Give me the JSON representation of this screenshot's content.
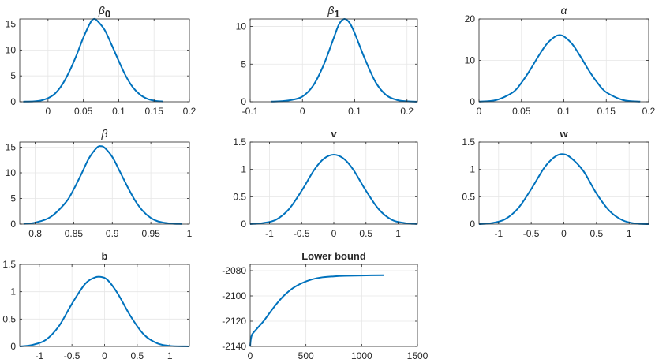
{
  "chart_data": [
    {
      "type": "line",
      "title": "β",
      "title_subscript": "0",
      "xlim": [
        -0.04,
        0.2
      ],
      "ylim": [
        0,
        16
      ],
      "xticks": [
        0,
        0.05,
        0.1,
        0.15,
        0.2
      ],
      "xtick_labels": [
        "0",
        "0.05",
        "0.1",
        "0.15",
        "0.2"
      ],
      "yticks": [
        0,
        5,
        10,
        15
      ],
      "ytick_labels": [
        "0",
        "5",
        "10",
        "15"
      ],
      "grid": true,
      "line_color": "#0072BD",
      "x": [
        -0.035,
        -0.02,
        -0.01,
        0.0,
        0.01,
        0.02,
        0.03,
        0.04,
        0.05,
        0.06,
        0.065,
        0.07,
        0.08,
        0.09,
        0.1,
        0.11,
        0.12,
        0.13,
        0.14,
        0.15,
        0.163
      ],
      "y": [
        0.02,
        0.08,
        0.25,
        0.7,
        1.6,
        3.3,
        5.8,
        8.9,
        12.4,
        15.3,
        16.0,
        15.6,
        13.9,
        11.0,
        7.9,
        5.0,
        2.8,
        1.4,
        0.6,
        0.22,
        0.05
      ]
    },
    {
      "type": "line",
      "title": "β",
      "title_subscript": "1",
      "xlim": [
        -0.1,
        0.22
      ],
      "ylim": [
        0,
        11
      ],
      "xticks": [
        -0.1,
        0,
        0.1,
        0.2
      ],
      "xtick_labels": [
        "-0.1",
        "0",
        "0.1",
        "0.2"
      ],
      "yticks": [
        0,
        5,
        10
      ],
      "ytick_labels": [
        "0",
        "5",
        "10"
      ],
      "grid": true,
      "line_color": "#0072BD",
      "x": [
        -0.06,
        -0.04,
        -0.02,
        0.0,
        0.02,
        0.04,
        0.06,
        0.07,
        0.08,
        0.09,
        0.1,
        0.12,
        0.14,
        0.16,
        0.18,
        0.2,
        0.22
      ],
      "y": [
        0.02,
        0.08,
        0.25,
        0.7,
        2.1,
        4.8,
        8.5,
        10.3,
        11.0,
        10.5,
        9.1,
        5.6,
        2.6,
        0.9,
        0.25,
        0.06,
        0.01
      ]
    },
    {
      "type": "line",
      "title": "α",
      "xlim": [
        0,
        0.2
      ],
      "ylim": [
        0,
        20
      ],
      "xticks": [
        0,
        0.05,
        0.1,
        0.15,
        0.2
      ],
      "xtick_labels": [
        "0",
        "0.05",
        "0.1",
        "0.15",
        "0.2"
      ],
      "yticks": [
        0,
        10,
        20
      ],
      "ytick_labels": [
        "0",
        "10",
        "20"
      ],
      "grid": true,
      "line_color": "#0072BD",
      "x": [
        0.0,
        0.02,
        0.04,
        0.05,
        0.06,
        0.07,
        0.08,
        0.09,
        0.095,
        0.1,
        0.11,
        0.12,
        0.13,
        0.14,
        0.15,
        0.17,
        0.19
      ],
      "y": [
        0.05,
        0.4,
        2.3,
        4.6,
        7.6,
        11.0,
        14.0,
        15.8,
        16.1,
        15.8,
        13.9,
        10.8,
        7.4,
        4.5,
        2.3,
        0.4,
        0.05
      ]
    },
    {
      "type": "line",
      "title": "β",
      "xlim": [
        0.78,
        1.0
      ],
      "ylim": [
        0,
        16
      ],
      "xticks": [
        0.8,
        0.85,
        0.9,
        0.95,
        1.0
      ],
      "xtick_labels": [
        "0.8",
        "0.85",
        "0.9",
        "0.95",
        "1"
      ],
      "yticks": [
        0,
        5,
        10,
        15
      ],
      "ytick_labels": [
        "0",
        "5",
        "10",
        "15"
      ],
      "grid": true,
      "line_color": "#0072BD",
      "x": [
        0.785,
        0.8,
        0.82,
        0.84,
        0.85,
        0.86,
        0.87,
        0.88,
        0.885,
        0.89,
        0.9,
        0.91,
        0.92,
        0.93,
        0.94,
        0.95,
        0.96,
        0.975,
        0.99
      ],
      "y": [
        0.05,
        0.3,
        1.4,
        4.3,
        6.8,
        9.8,
        12.9,
        14.9,
        15.2,
        14.9,
        13.1,
        10.2,
        7.2,
        4.5,
        2.5,
        1.2,
        0.5,
        0.12,
        0.02
      ]
    },
    {
      "type": "line",
      "title": "v",
      "xlim": [
        -1.3,
        1.3
      ],
      "ylim": [
        0,
        1.5
      ],
      "xticks": [
        -1,
        -0.5,
        0,
        0.5,
        1
      ],
      "xtick_labels": [
        "-1",
        "-0.5",
        "0",
        "0.5",
        "1"
      ],
      "yticks": [
        0,
        0.5,
        1,
        1.5
      ],
      "ytick_labels": [
        "0",
        "0.5",
        "1",
        "1.5"
      ],
      "grid": true,
      "line_color": "#0072BD",
      "x": [
        -1.3,
        -1.1,
        -0.9,
        -0.7,
        -0.5,
        -0.3,
        -0.15,
        0.0,
        0.15,
        0.3,
        0.5,
        0.7,
        0.9,
        1.1,
        1.3
      ],
      "y": [
        0.0,
        0.02,
        0.08,
        0.27,
        0.61,
        1.0,
        1.2,
        1.27,
        1.2,
        1.0,
        0.61,
        0.27,
        0.08,
        0.02,
        0.0
      ]
    },
    {
      "type": "line",
      "title": "w",
      "xlim": [
        -1.3,
        1.3
      ],
      "ylim": [
        0,
        1.5
      ],
      "xticks": [
        -1,
        -0.5,
        0,
        0.5,
        1
      ],
      "xtick_labels": [
        "-1",
        "-0.5",
        "0",
        "0.5",
        "1"
      ],
      "yticks": [
        0,
        0.5,
        1,
        1.5
      ],
      "ytick_labels": [
        "0",
        "0.5",
        "1",
        "1.5"
      ],
      "grid": true,
      "line_color": "#0072BD",
      "x": [
        -1.3,
        -1.1,
        -0.9,
        -0.7,
        -0.5,
        -0.3,
        -0.15,
        -0.03,
        0.1,
        0.3,
        0.5,
        0.7,
        0.9,
        1.1,
        1.3
      ],
      "y": [
        0.0,
        0.02,
        0.09,
        0.29,
        0.64,
        1.03,
        1.22,
        1.28,
        1.22,
        0.97,
        0.56,
        0.24,
        0.07,
        0.01,
        0.0
      ]
    },
    {
      "type": "line",
      "title": "b",
      "xlim": [
        -1.3,
        1.3
      ],
      "ylim": [
        0,
        1.5
      ],
      "xticks": [
        -1,
        -0.5,
        0,
        0.5,
        1
      ],
      "xtick_labels": [
        "-1",
        "-0.5",
        "0",
        "0.5",
        "1"
      ],
      "yticks": [
        0,
        0.5,
        1,
        1.5
      ],
      "ytick_labels": [
        "0",
        "0.5",
        "1",
        "1.5"
      ],
      "grid": true,
      "line_color": "#0072BD",
      "x": [
        -1.3,
        -1.1,
        -0.9,
        -0.7,
        -0.5,
        -0.3,
        -0.15,
        -0.05,
        0.05,
        0.2,
        0.4,
        0.6,
        0.8,
        1.0,
        1.3
      ],
      "y": [
        0.0,
        0.03,
        0.12,
        0.37,
        0.78,
        1.14,
        1.26,
        1.27,
        1.21,
        0.97,
        0.55,
        0.22,
        0.06,
        0.01,
        0.0
      ]
    },
    {
      "type": "line",
      "title": "Lower bound",
      "xlim": [
        0,
        1500
      ],
      "ylim": [
        -2140,
        -2075
      ],
      "xticks": [
        0,
        500,
        1000,
        1500
      ],
      "xtick_labels": [
        "0",
        "500",
        "1000",
        "1500"
      ],
      "yticks": [
        -2140,
        -2120,
        -2100,
        -2080
      ],
      "ytick_labels": [
        "-2140",
        "-2120",
        "-2100",
        "-2080"
      ],
      "grid": true,
      "line_color": "#0072BD",
      "x": [
        0,
        5,
        15,
        30,
        50,
        80,
        120,
        170,
        230,
        300,
        380,
        460,
        550,
        650,
        750,
        850,
        1000,
        1200
      ],
      "y": [
        -2140,
        -2135,
        -2131,
        -2129,
        -2127,
        -2124,
        -2120,
        -2114,
        -2107,
        -2100,
        -2094,
        -2090,
        -2087,
        -2085.2,
        -2084.5,
        -2084.1,
        -2083.8,
        -2083.6
      ]
    }
  ]
}
